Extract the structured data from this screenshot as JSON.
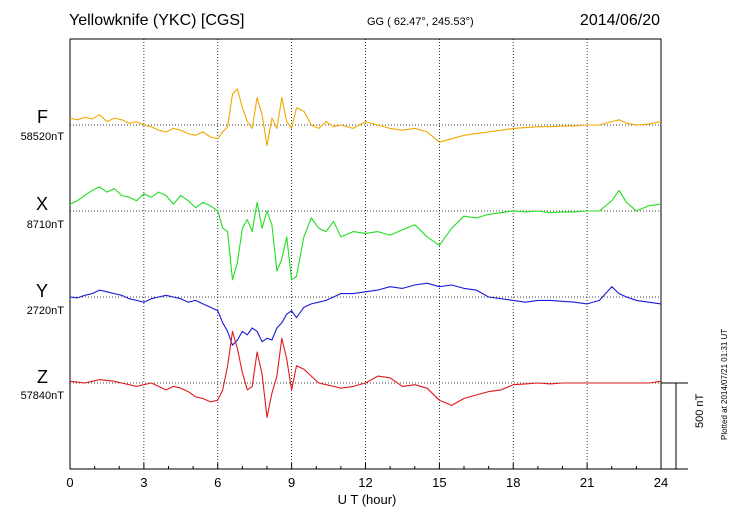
{
  "header": {
    "title": "Yellowknife (YKC)  [CGS]",
    "coords": "GG ( 62.47°, 245.53°)",
    "date": "2014/06/20"
  },
  "footer": {
    "plotted": "Plotted at 2014/07/21 01:31 UT",
    "scale_label": "500 nT"
  },
  "colors": {
    "F": "#f0a800",
    "X": "#22dd22",
    "Y": "#1a1ad8",
    "Z": "#e01818"
  },
  "chart_data": {
    "type": "line",
    "title": "Yellowknife (YKC)  [CGS]",
    "xlabel": "U T (hour)",
    "ylabel": "",
    "xlim": [
      0,
      24
    ],
    "x_ticks": [
      0,
      3,
      6,
      9,
      12,
      15,
      18,
      21,
      24
    ],
    "x_tick_labels": [
      "0",
      "3",
      "6",
      "9",
      "12",
      "15",
      "18",
      "21",
      "24"
    ],
    "grid": true,
    "scale_bar_nT": 500,
    "series": [
      {
        "name": "F",
        "baseline_label": "58520nT",
        "color": "#f0a800",
        "x": [
          0,
          0.3,
          0.6,
          0.9,
          1.2,
          1.5,
          1.8,
          2.1,
          2.4,
          2.7,
          3.0,
          3.3,
          3.6,
          3.9,
          4.2,
          4.5,
          4.8,
          5.1,
          5.4,
          5.7,
          6.0,
          6.2,
          6.4,
          6.6,
          6.8,
          7.0,
          7.2,
          7.4,
          7.6,
          7.8,
          8.0,
          8.2,
          8.4,
          8.6,
          8.8,
          9.0,
          9.2,
          9.5,
          9.8,
          10.1,
          10.4,
          10.7,
          11.0,
          11.5,
          12.0,
          12.5,
          13.0,
          13.5,
          14.0,
          14.5,
          15.0,
          15.5,
          16.0,
          16.5,
          17.0,
          17.5,
          18.0,
          18.5,
          19.0,
          19.5,
          20.0,
          20.5,
          21.0,
          21.5,
          22.0,
          22.3,
          22.6,
          23.0,
          23.5,
          24.0
        ],
        "values": [
          40,
          30,
          45,
          35,
          60,
          20,
          40,
          30,
          10,
          20,
          0,
          -10,
          -30,
          -40,
          -20,
          -30,
          -50,
          -60,
          -40,
          -70,
          -80,
          -40,
          -10,
          180,
          210,
          100,
          20,
          -20,
          160,
          60,
          -120,
          40,
          -20,
          160,
          20,
          -20,
          100,
          80,
          0,
          -20,
          20,
          -10,
          0,
          -20,
          20,
          0,
          -20,
          -30,
          -20,
          -40,
          -100,
          -80,
          -60,
          -50,
          -40,
          -30,
          -20,
          -15,
          -10,
          -10,
          -5,
          -5,
          0,
          0,
          20,
          30,
          10,
          0,
          5,
          20
        ]
      },
      {
        "name": "X",
        "baseline_label": "8710nT",
        "color": "#22dd22",
        "x": [
          0,
          0.3,
          0.6,
          0.9,
          1.2,
          1.5,
          1.8,
          2.1,
          2.4,
          2.7,
          3.0,
          3.3,
          3.6,
          3.9,
          4.2,
          4.5,
          4.8,
          5.1,
          5.4,
          5.7,
          6.0,
          6.2,
          6.4,
          6.6,
          6.8,
          7.0,
          7.2,
          7.4,
          7.6,
          7.8,
          8.0,
          8.2,
          8.4,
          8.6,
          8.8,
          9.0,
          9.2,
          9.5,
          9.8,
          10.1,
          10.4,
          10.7,
          11.0,
          11.5,
          12.0,
          12.5,
          13.0,
          13.5,
          14.0,
          14.5,
          15.0,
          15.5,
          16.0,
          16.5,
          17.0,
          17.5,
          18.0,
          18.5,
          19.0,
          19.5,
          20.0,
          20.5,
          21.0,
          21.5,
          22.0,
          22.3,
          22.6,
          23.0,
          23.5,
          24.0
        ],
        "values": [
          40,
          60,
          90,
          120,
          140,
          110,
          130,
          90,
          80,
          60,
          100,
          80,
          110,
          90,
          40,
          90,
          60,
          20,
          50,
          30,
          0,
          -100,
          -120,
          -400,
          -300,
          -100,
          -50,
          -120,
          50,
          -100,
          0,
          -80,
          -350,
          -280,
          -150,
          -400,
          -380,
          -150,
          -40,
          -100,
          -120,
          -60,
          -150,
          -120,
          -130,
          -120,
          -140,
          -110,
          -80,
          -150,
          -200,
          -100,
          -30,
          -40,
          -20,
          -10,
          0,
          -5,
          0,
          -10,
          -5,
          -5,
          0,
          0,
          60,
          120,
          50,
          0,
          30,
          40
        ]
      },
      {
        "name": "Y",
        "baseline_label": "2720nT",
        "color": "#1a1ad8",
        "x": [
          0,
          0.3,
          0.6,
          0.9,
          1.2,
          1.5,
          1.8,
          2.1,
          2.4,
          2.7,
          3.0,
          3.3,
          3.6,
          3.9,
          4.2,
          4.5,
          4.8,
          5.1,
          5.4,
          5.7,
          6.0,
          6.2,
          6.4,
          6.6,
          6.8,
          7.0,
          7.2,
          7.4,
          7.6,
          7.8,
          8.0,
          8.2,
          8.4,
          8.6,
          8.8,
          9.0,
          9.2,
          9.5,
          9.8,
          10.1,
          10.4,
          10.7,
          11.0,
          11.5,
          12.0,
          12.5,
          13.0,
          13.5,
          14.0,
          14.5,
          15.0,
          15.5,
          16.0,
          16.5,
          17.0,
          17.5,
          18.0,
          18.5,
          19.0,
          19.5,
          20.0,
          20.5,
          21.0,
          21.5,
          22.0,
          22.3,
          22.6,
          23.0,
          23.5,
          24.0
        ],
        "values": [
          0,
          -5,
          10,
          20,
          40,
          30,
          20,
          10,
          -10,
          -20,
          -30,
          -10,
          0,
          10,
          0,
          -10,
          -30,
          -20,
          -40,
          -60,
          -80,
          -150,
          -200,
          -280,
          -250,
          -200,
          -220,
          -180,
          -200,
          -260,
          -240,
          -250,
          -180,
          -150,
          -100,
          -80,
          -120,
          -60,
          -40,
          -30,
          -20,
          0,
          20,
          20,
          30,
          40,
          60,
          50,
          70,
          80,
          60,
          70,
          50,
          40,
          0,
          -10,
          -20,
          -30,
          -20,
          -20,
          -25,
          -30,
          -40,
          -20,
          60,
          20,
          0,
          -20,
          -30,
          -40
        ]
      },
      {
        "name": "Z",
        "baseline_label": "57840nT",
        "color": "#e01818",
        "x": [
          0,
          0.3,
          0.6,
          0.9,
          1.2,
          1.5,
          1.8,
          2.1,
          2.4,
          2.7,
          3.0,
          3.3,
          3.6,
          3.9,
          4.2,
          4.5,
          4.8,
          5.1,
          5.4,
          5.7,
          6.0,
          6.2,
          6.4,
          6.6,
          6.8,
          7.0,
          7.2,
          7.4,
          7.6,
          7.8,
          8.0,
          8.2,
          8.4,
          8.6,
          8.8,
          9.0,
          9.2,
          9.5,
          9.8,
          10.1,
          10.4,
          10.7,
          11.0,
          11.5,
          12.0,
          12.5,
          13.0,
          13.5,
          14.0,
          14.5,
          15.0,
          15.5,
          16.0,
          16.5,
          17.0,
          17.5,
          18.0,
          18.5,
          19.0,
          19.5,
          20.0,
          20.5,
          21.0,
          21.5,
          22.0,
          22.3,
          22.6,
          23.0,
          23.5,
          24.0
        ],
        "values": [
          10,
          5,
          0,
          10,
          20,
          15,
          10,
          0,
          -10,
          -20,
          -10,
          0,
          -20,
          -40,
          -20,
          -30,
          -50,
          -80,
          -90,
          -110,
          -100,
          -40,
          100,
          300,
          200,
          60,
          -40,
          -20,
          180,
          50,
          -200,
          -60,
          40,
          260,
          140,
          -40,
          100,
          80,
          40,
          0,
          -10,
          -20,
          -30,
          -20,
          0,
          40,
          30,
          -20,
          -10,
          -30,
          -100,
          -130,
          -90,
          -70,
          -50,
          -40,
          -10,
          -5,
          0,
          -5,
          0,
          0,
          0,
          0,
          0,
          0,
          0,
          0,
          0,
          10
        ]
      }
    ]
  }
}
